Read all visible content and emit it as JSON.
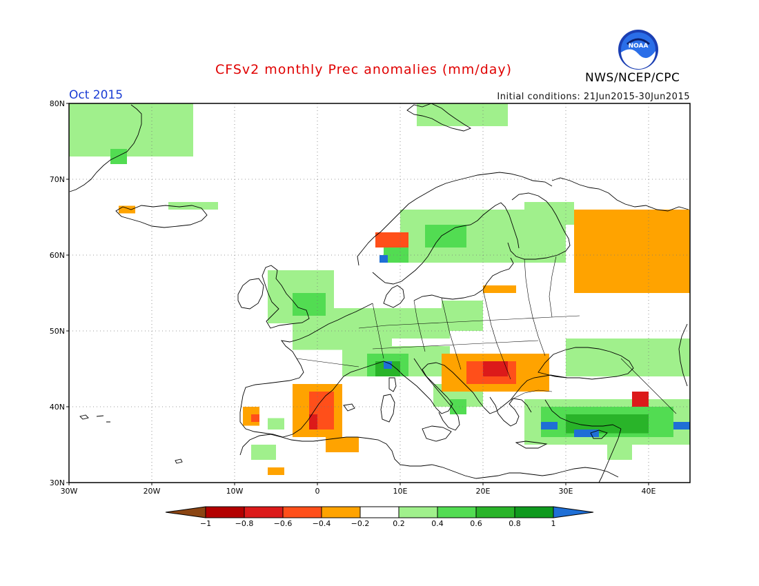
{
  "title": "CFSv2 monthly Prec anomalies (mm/day)",
  "period": "Oct 2015",
  "initial_conditions": "Initial conditions: 21Jun2015-30Jun2015",
  "agency": "NWS/NCEP/CPC",
  "logo_text": "NOAA",
  "map": {
    "lon_range": [
      -30,
      45
    ],
    "lat_range": [
      30,
      80
    ],
    "lat_labels": [
      "30N",
      "40N",
      "50N",
      "60N",
      "70N",
      "80N"
    ],
    "lon_labels": [
      "30W",
      "20W",
      "10W",
      "0",
      "10E",
      "20E",
      "30E",
      "40E"
    ],
    "grid": "dotted",
    "units": "mm/day"
  },
  "colorbar": {
    "labels": [
      "-1",
      "-0.8",
      "-0.6",
      "-0.4",
      "-0.2",
      "0.2",
      "0.4",
      "0.6",
      "0.8",
      "1"
    ],
    "colors": [
      "#8b4513",
      "#b30000",
      "#dc1a1a",
      "#ff4f1a",
      "#ffa300",
      "#ffffff",
      "#a0f08c",
      "#52dc52",
      "#29b429",
      "#0f9a1e",
      "#1f6fd6"
    ]
  },
  "colors": {
    "wet_light": "#a0f08c",
    "wet_mid": "#52dc52",
    "wet_dark": "#29b429",
    "wet_max": "#1f6fd6",
    "dry_light": "#ffa300",
    "dry_mid": "#ff4f1a",
    "dry_dark": "#dc1a1a",
    "coast": "#000000"
  },
  "anomaly_regions": [
    {
      "level": "wet_light",
      "lon": [
        -30,
        -15
      ],
      "lat": [
        73,
        80
      ]
    },
    {
      "level": "wet_mid",
      "lon": [
        -25,
        -23
      ],
      "lat": [
        72,
        74
      ]
    },
    {
      "level": "wet_light",
      "lon": [
        -18,
        -12
      ],
      "lat": [
        66,
        67
      ]
    },
    {
      "level": "dry_light",
      "lon": [
        -24,
        -22
      ],
      "lat": [
        65.5,
        66.5
      ]
    },
    {
      "level": "wet_light",
      "lon": [
        12,
        23
      ],
      "lat": [
        77,
        80
      ]
    },
    {
      "level": "wet_light",
      "lon": [
        10,
        30
      ],
      "lat": [
        59,
        66
      ]
    },
    {
      "level": "wet_mid",
      "lon": [
        13,
        18
      ],
      "lat": [
        61,
        64
      ]
    },
    {
      "level": "wet_light",
      "lon": [
        25,
        31
      ],
      "lat": [
        64,
        67
      ]
    },
    {
      "level": "wet_light",
      "lon": [
        22,
        27
      ],
      "lat": [
        60,
        63
      ]
    },
    {
      "level": "dry_mid",
      "lon": [
        7,
        11
      ],
      "lat": [
        61,
        63
      ]
    },
    {
      "level": "wet_mid",
      "lon": [
        8,
        11
      ],
      "lat": [
        59,
        61
      ]
    },
    {
      "level": "wet_max",
      "lon": [
        7.5,
        8.5
      ],
      "lat": [
        59,
        60
      ]
    },
    {
      "level": "wet_light",
      "lon": [
        -6,
        2
      ],
      "lat": [
        51,
        58
      ]
    },
    {
      "level": "wet_mid",
      "lon": [
        -3,
        1
      ],
      "lat": [
        52,
        55
      ]
    },
    {
      "level": "wet_light",
      "lon": [
        -3,
        9
      ],
      "lat": [
        47.5,
        51
      ]
    },
    {
      "level": "wet_light",
      "lon": [
        2,
        16
      ],
      "lat": [
        49,
        53
      ]
    },
    {
      "level": "wet_light",
      "lon": [
        15,
        20
      ],
      "lat": [
        50,
        54
      ]
    },
    {
      "level": "wet_light",
      "lon": [
        3,
        16
      ],
      "lat": [
        44,
        48
      ]
    },
    {
      "level": "wet_mid",
      "lon": [
        6,
        11
      ],
      "lat": [
        44,
        47
      ]
    },
    {
      "level": "wet_dark",
      "lon": [
        7,
        10
      ],
      "lat": [
        44,
        46
      ]
    },
    {
      "level": "wet_max",
      "lon": [
        8,
        9
      ],
      "lat": [
        45,
        46
      ]
    },
    {
      "level": "wet_light",
      "lon": [
        14,
        20
      ],
      "lat": [
        40,
        43
      ]
    },
    {
      "level": "wet_mid",
      "lon": [
        16,
        18
      ],
      "lat": [
        39,
        41
      ]
    },
    {
      "level": "dry_light",
      "lon": [
        15,
        28
      ],
      "lat": [
        42,
        47
      ]
    },
    {
      "level": "dry_mid",
      "lon": [
        18,
        24
      ],
      "lat": [
        43,
        46
      ]
    },
    {
      "level": "dry_dark",
      "lon": [
        20,
        23
      ],
      "lat": [
        44,
        46
      ]
    },
    {
      "level": "dry_light",
      "lon": [
        -3,
        3
      ],
      "lat": [
        36,
        43
      ]
    },
    {
      "level": "dry_mid",
      "lon": [
        -1,
        2
      ],
      "lat": [
        37,
        42
      ]
    },
    {
      "level": "dry_dark",
      "lon": [
        -1,
        0
      ],
      "lat": [
        37,
        39
      ]
    },
    {
      "level": "dry_light",
      "lon": [
        -9,
        -7
      ],
      "lat": [
        37.5,
        40
      ]
    },
    {
      "level": "dry_mid",
      "lon": [
        -8,
        -7
      ],
      "lat": [
        38,
        39
      ]
    },
    {
      "level": "wet_light",
      "lon": [
        -6,
        -4
      ],
      "lat": [
        37,
        38.5
      ]
    },
    {
      "level": "wet_light",
      "lon": [
        -8,
        -5
      ],
      "lat": [
        33,
        35
      ]
    },
    {
      "level": "dry_light",
      "lon": [
        1,
        5
      ],
      "lat": [
        34,
        36
      ]
    },
    {
      "level": "dry_light",
      "lon": [
        -6,
        -4
      ],
      "lat": [
        31,
        32
      ]
    },
    {
      "level": "dry_light",
      "lon": [
        31,
        45
      ],
      "lat": [
        55,
        66
      ]
    },
    {
      "level": "dry_light",
      "lon": [
        20,
        24
      ],
      "lat": [
        55,
        56
      ]
    },
    {
      "level": "wet_light",
      "lon": [
        30,
        45
      ],
      "lat": [
        44,
        49
      ]
    },
    {
      "level": "wet_light",
      "lon": [
        25,
        45
      ],
      "lat": [
        35,
        41
      ]
    },
    {
      "level": "wet_mid",
      "lon": [
        27,
        43
      ],
      "lat": [
        36,
        40
      ]
    },
    {
      "level": "wet_dark",
      "lon": [
        30,
        40
      ],
      "lat": [
        36.5,
        39
      ]
    },
    {
      "level": "wet_max",
      "lon": [
        27,
        29
      ],
      "lat": [
        37,
        38
      ]
    },
    {
      "level": "wet_max",
      "lon": [
        31,
        34
      ],
      "lat": [
        36,
        37
      ]
    },
    {
      "level": "wet_max",
      "lon": [
        43,
        45
      ],
      "lat": [
        37,
        38
      ]
    },
    {
      "level": "dry_dark",
      "lon": [
        38,
        40
      ],
      "lat": [
        40,
        42
      ]
    },
    {
      "level": "wet_light",
      "lon": [
        35,
        38
      ],
      "lat": [
        33,
        36
      ]
    }
  ]
}
